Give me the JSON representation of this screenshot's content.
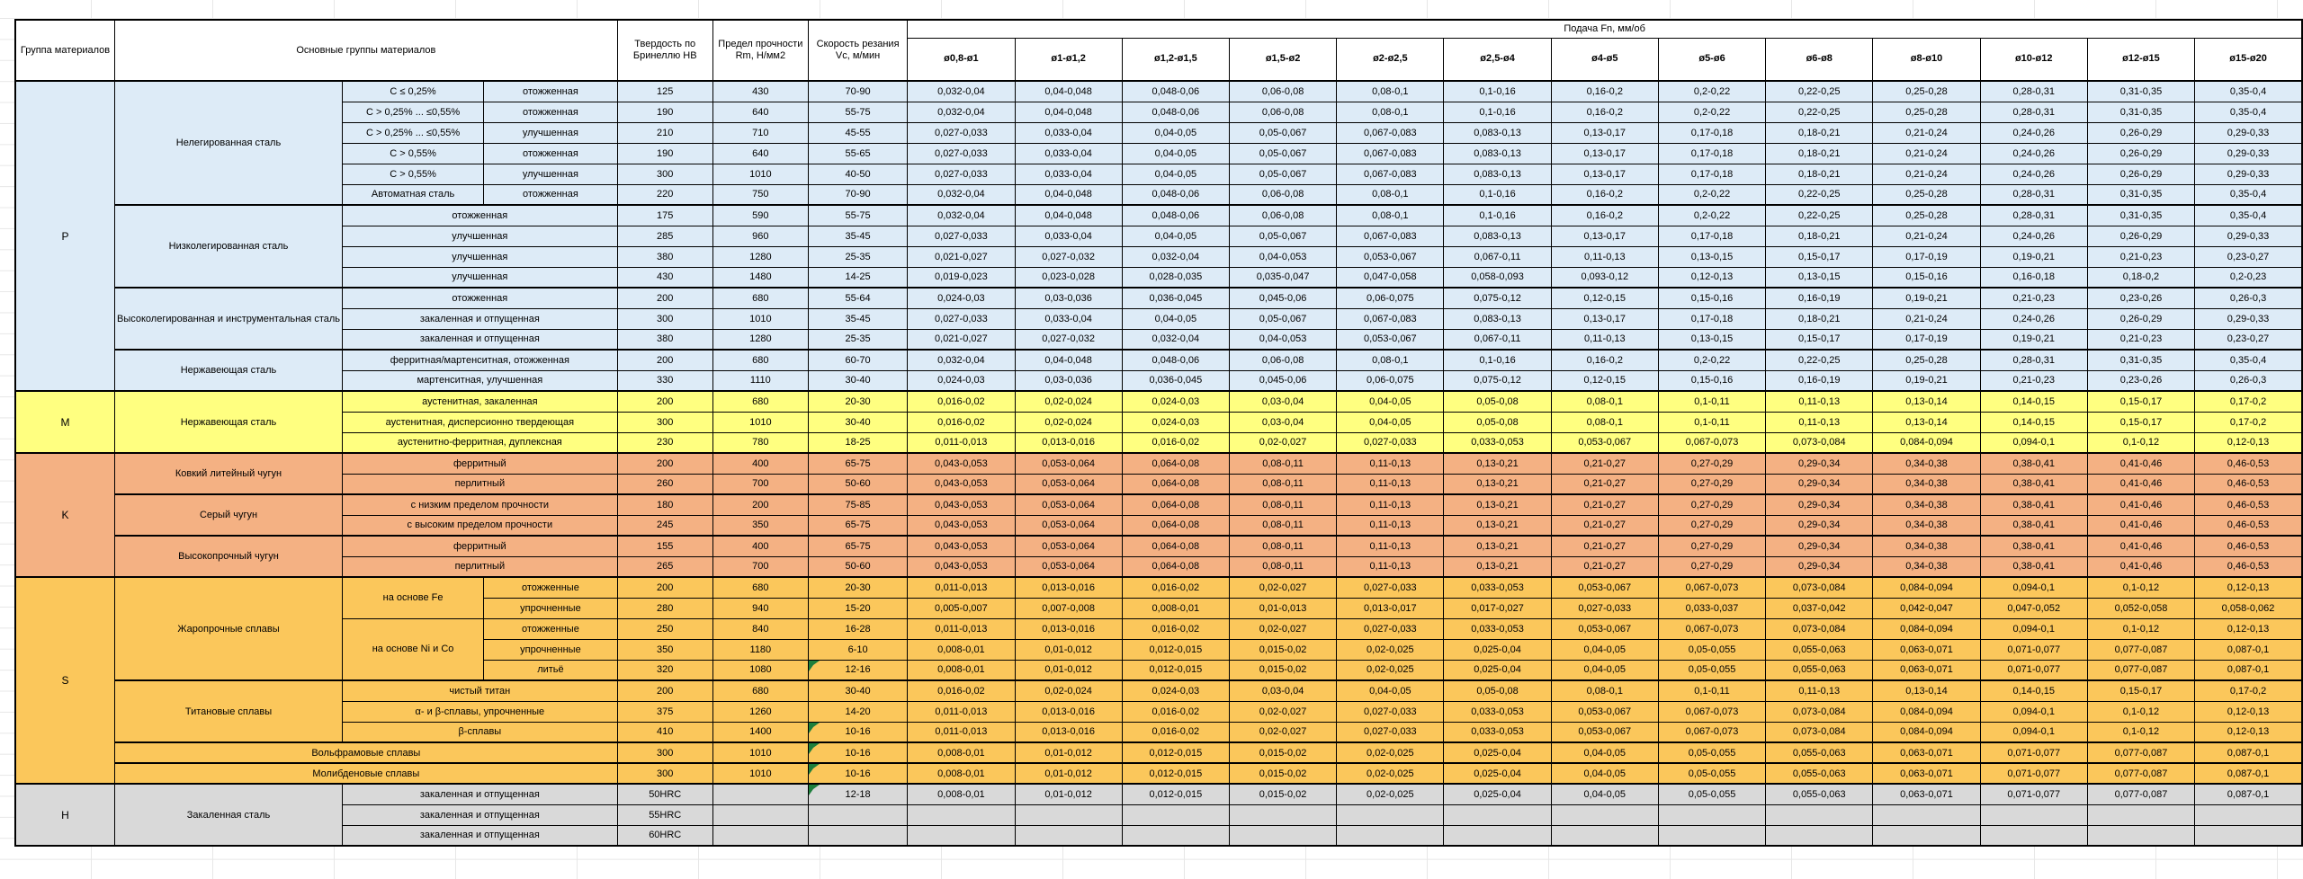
{
  "table": {
    "headers": {
      "group": "Группа материалов",
      "main_groups": "Основные группы материалов",
      "hardness": "Твердость по Бринеллю НВ",
      "strength": "Предел прочности Rm, Н/мм2",
      "speed": "Скорость резания Vc, м/мин",
      "feed": "Подача Fn, мм/об"
    },
    "diameter_columns": [
      "ø0,8-ø1",
      "ø1-ø1,2",
      "ø1,2-ø1,5",
      "ø1,5-ø2",
      "ø2-ø2,5",
      "ø2,5-ø4",
      "ø4-ø5",
      "ø5-ø6",
      "ø6-ø8",
      "ø8-ø10",
      "ø10-ø12",
      "ø12-ø15",
      "ø15-ø20"
    ],
    "group_colors": {
      "P": "#DDEBF7",
      "M": "#FFFF80",
      "K": "#F4B183",
      "S": "#FBC75B",
      "H": "#D9D9D9"
    },
    "feed_families": {
      "F1": [
        "0,032-0,04",
        "0,04-0,048",
        "0,048-0,06",
        "0,06-0,08",
        "0,08-0,1",
        "0,1-0,16",
        "0,16-0,2",
        "0,2-0,22",
        "0,22-0,25",
        "0,25-0,28",
        "0,28-0,31",
        "0,31-0,35",
        "0,35-0,4"
      ],
      "F2": [
        "0,027-0,033",
        "0,033-0,04",
        "0,04-0,05",
        "0,05-0,067",
        "0,067-0,083",
        "0,083-0,13",
        "0,13-0,17",
        "0,17-0,18",
        "0,18-0,21",
        "0,21-0,24",
        "0,24-0,26",
        "0,26-0,29",
        "0,29-0,33"
      ],
      "F3": [
        "0,021-0,027",
        "0,027-0,032",
        "0,032-0,04",
        "0,04-0,053",
        "0,053-0,067",
        "0,067-0,11",
        "0,11-0,13",
        "0,13-0,15",
        "0,15-0,17",
        "0,17-0,19",
        "0,19-0,21",
        "0,21-0,23",
        "0,23-0,27"
      ],
      "F4": [
        "0,019-0,023",
        "0,023-0,028",
        "0,028-0,035",
        "0,035-0,047",
        "0,047-0,058",
        "0,058-0,093",
        "0,093-0,12",
        "0,12-0,13",
        "0,13-0,15",
        "0,15-0,16",
        "0,16-0,18",
        "0,18-0,2",
        "0,2-0,23"
      ],
      "F5": [
        "0,024-0,03",
        "0,03-0,036",
        "0,036-0,045",
        "0,045-0,06",
        "0,06-0,075",
        "0,075-0,12",
        "0,12-0,15",
        "0,15-0,16",
        "0,16-0,19",
        "0,19-0,21",
        "0,21-0,23",
        "0,23-0,26",
        "0,26-0,3"
      ],
      "F6": [
        "0,016-0,02",
        "0,02-0,024",
        "0,024-0,03",
        "0,03-0,04",
        "0,04-0,05",
        "0,05-0,08",
        "0,08-0,1",
        "0,1-0,11",
        "0,11-0,13",
        "0,13-0,14",
        "0,14-0,15",
        "0,15-0,17",
        "0,17-0,2"
      ],
      "F7": [
        "0,011-0,013",
        "0,013-0,016",
        "0,016-0,02",
        "0,02-0,027",
        "0,027-0,033",
        "0,033-0,053",
        "0,053-0,067",
        "0,067-0,073",
        "0,073-0,084",
        "0,084-0,094",
        "0,094-0,1",
        "0,1-0,12",
        "0,12-0,13"
      ],
      "F8": [
        "0,043-0,053",
        "0,053-0,064",
        "0,064-0,08",
        "0,08-0,11",
        "0,11-0,13",
        "0,13-0,21",
        "0,21-0,27",
        "0,27-0,29",
        "0,29-0,34",
        "0,34-0,38",
        "0,38-0,41",
        "0,41-0,46",
        "0,46-0,53"
      ],
      "F9": [
        "0,005-0,007",
        "0,007-0,008",
        "0,008-0,01",
        "0,01-0,013",
        "0,013-0,017",
        "0,017-0,027",
        "0,027-0,033",
        "0,033-0,037",
        "0,037-0,042",
        "0,042-0,047",
        "0,047-0,052",
        "0,052-0,058",
        "0,058-0,062"
      ],
      "F10": [
        "0,008-0,01",
        "0,01-0,012",
        "0,012-0,015",
        "0,015-0,02",
        "0,02-0,025",
        "0,025-0,04",
        "0,04-0,05",
        "0,05-0,055",
        "0,055-0,063",
        "0,063-0,071",
        "0,071-0,077",
        "0,077-0,087",
        "0,087-0,1"
      ],
      "F11": [
        "",
        "",
        "",
        "",
        "",
        "",
        "",
        "",
        "",
        "",
        "",
        "",
        ""
      ]
    },
    "rows": [
      {
        "g": "P",
        "sep": true,
        "cells": [
          {
            "t": "P",
            "r": 15,
            "letter": true
          },
          {
            "t": "Нелегированная сталь",
            "r": 6
          },
          {
            "t": "С ≤ 0,25%"
          },
          {
            "t": "отожженная"
          }
        ],
        "hb": "125",
        "rm": "430",
        "vc": "70-90",
        "feeds": "F1"
      },
      {
        "g": "P",
        "cells": [
          {
            "t": "С > 0,25% ... ≤0,55%"
          },
          {
            "t": "отожженная"
          }
        ],
        "hb": "190",
        "rm": "640",
        "vc": "55-75",
        "feeds": "F1"
      },
      {
        "g": "P",
        "cells": [
          {
            "t": "С > 0,25% ... ≤0,55%"
          },
          {
            "t": "улучшенная"
          }
        ],
        "hb": "210",
        "rm": "710",
        "vc": "45-55",
        "feeds": "F2"
      },
      {
        "g": "P",
        "cells": [
          {
            "t": "С > 0,55%"
          },
          {
            "t": "отожженная"
          }
        ],
        "hb": "190",
        "rm": "640",
        "vc": "55-65",
        "feeds": "F2"
      },
      {
        "g": "P",
        "cells": [
          {
            "t": "С > 0,55%"
          },
          {
            "t": "улучшенная"
          }
        ],
        "hb": "300",
        "rm": "1010",
        "vc": "40-50",
        "feeds": "F2"
      },
      {
        "g": "P",
        "cells": [
          {
            "t": "Автоматная сталь"
          },
          {
            "t": "отожженная"
          }
        ],
        "hb": "220",
        "rm": "750",
        "vc": "70-90",
        "feeds": "F1"
      },
      {
        "g": "P",
        "sep": true,
        "cells": [
          {
            "t": "Низколегированная сталь",
            "r": 4
          },
          {
            "t": "отожженная",
            "c": 2
          }
        ],
        "hb": "175",
        "rm": "590",
        "vc": "55-75",
        "feeds": "F1"
      },
      {
        "g": "P",
        "cells": [
          {
            "t": "улучшенная",
            "c": 2
          }
        ],
        "hb": "285",
        "rm": "960",
        "vc": "35-45",
        "feeds": "F2"
      },
      {
        "g": "P",
        "cells": [
          {
            "t": "улучшенная",
            "c": 2
          }
        ],
        "hb": "380",
        "rm": "1280",
        "vc": "25-35",
        "feeds": "F3"
      },
      {
        "g": "P",
        "cells": [
          {
            "t": "улучшенная",
            "c": 2
          }
        ],
        "hb": "430",
        "rm": "1480",
        "vc": "14-25",
        "feeds": "F4"
      },
      {
        "g": "P",
        "sep": true,
        "cells": [
          {
            "t": "Высоколегированная и инструментальная сталь",
            "r": 3
          },
          {
            "t": "отожженная",
            "c": 2
          }
        ],
        "hb": "200",
        "rm": "680",
        "vc": "55-64",
        "feeds": "F5"
      },
      {
        "g": "P",
        "cells": [
          {
            "t": "закаленная и отпущенная",
            "c": 2
          }
        ],
        "hb": "300",
        "rm": "1010",
        "vc": "35-45",
        "feeds": "F2"
      },
      {
        "g": "P",
        "cells": [
          {
            "t": "закаленная и отпущенная",
            "c": 2
          }
        ],
        "hb": "380",
        "rm": "1280",
        "vc": "25-35",
        "feeds": "F3"
      },
      {
        "g": "P",
        "sep": true,
        "cells": [
          {
            "t": "Нержавеющая сталь",
            "r": 2
          },
          {
            "t": "ферритная/мартенситная, отожженная",
            "c": 2
          }
        ],
        "hb": "200",
        "rm": "680",
        "vc": "60-70",
        "feeds": "F1"
      },
      {
        "g": "P",
        "cells": [
          {
            "t": "мартенситная, улучшенная",
            "c": 2
          }
        ],
        "hb": "330",
        "rm": "1110",
        "vc": "30-40",
        "feeds": "F5"
      },
      {
        "g": "M",
        "sep": true,
        "cells": [
          {
            "t": "M",
            "r": 3,
            "letter": true
          },
          {
            "t": "Нержавеющая сталь",
            "r": 3
          },
          {
            "t": "аустенитная, закаленная",
            "c": 2
          }
        ],
        "hb": "200",
        "rm": "680",
        "vc": "20-30",
        "feeds": "F6"
      },
      {
        "g": "M",
        "cells": [
          {
            "t": "аустенитная, дисперсионно твердеющая",
            "c": 2
          }
        ],
        "hb": "300",
        "rm": "1010",
        "vc": "30-40",
        "feeds": "F6"
      },
      {
        "g": "M",
        "cells": [
          {
            "t": "аустенитно-ферритная, дуплексная",
            "c": 2
          }
        ],
        "hb": "230",
        "rm": "780",
        "vc": "18-25",
        "feeds": "F7"
      },
      {
        "g": "K",
        "sep": true,
        "cells": [
          {
            "t": "K",
            "r": 6,
            "letter": true
          },
          {
            "t": "Ковкий литейный чугун",
            "r": 2
          },
          {
            "t": "ферритный",
            "c": 2
          }
        ],
        "hb": "200",
        "rm": "400",
        "vc": "65-75",
        "feeds": "F8"
      },
      {
        "g": "K",
        "cells": [
          {
            "t": "перлитный",
            "c": 2
          }
        ],
        "hb": "260",
        "rm": "700",
        "vc": "50-60",
        "feeds": "F8"
      },
      {
        "g": "K",
        "sep": true,
        "cells": [
          {
            "t": "Серый чугун",
            "r": 2
          },
          {
            "t": "с низким пределом прочности",
            "c": 2
          }
        ],
        "hb": "180",
        "rm": "200",
        "vc": "75-85",
        "feeds": "F8"
      },
      {
        "g": "K",
        "cells": [
          {
            "t": "с высоким пределом прочности",
            "c": 2
          }
        ],
        "hb": "245",
        "rm": "350",
        "vc": "65-75",
        "feeds": "F8"
      },
      {
        "g": "K",
        "sep": true,
        "cells": [
          {
            "t": "Высокопрочный чугун",
            "r": 2
          },
          {
            "t": "ферритный",
            "c": 2
          }
        ],
        "hb": "155",
        "rm": "400",
        "vc": "65-75",
        "feeds": "F8"
      },
      {
        "g": "K",
        "cells": [
          {
            "t": "перлитный",
            "c": 2
          }
        ],
        "hb": "265",
        "rm": "700",
        "vc": "50-60",
        "feeds": "F8"
      },
      {
        "g": "S",
        "sep": true,
        "cells": [
          {
            "t": "S",
            "r": 10,
            "letter": true
          },
          {
            "t": "Жаропрочные сплавы",
            "r": 5
          },
          {
            "t": "на основе Fe",
            "r": 2
          },
          {
            "t": "отожженные"
          }
        ],
        "hb": "200",
        "rm": "680",
        "vc": "20-30",
        "feeds": "F7"
      },
      {
        "g": "S",
        "cells": [
          {
            "t": "упрочненные"
          }
        ],
        "hb": "280",
        "rm": "940",
        "vc": "15-20",
        "feeds": "F9"
      },
      {
        "g": "S",
        "cells": [
          {
            "t": "на основе Ni и Co",
            "r": 3
          },
          {
            "t": "отожженные"
          }
        ],
        "hb": "250",
        "rm": "840",
        "vc": "16-28",
        "feeds": "F7"
      },
      {
        "g": "S",
        "cells": [
          {
            "t": "упрочненные"
          }
        ],
        "hb": "350",
        "rm": "1180",
        "vc": "6-10",
        "feeds": "F10"
      },
      {
        "g": "S",
        "cells": [
          {
            "t": "литьё"
          }
        ],
        "hb": "320",
        "rm": "1080",
        "vc": "12-16",
        "vc_flag": true,
        "feeds": "F10"
      },
      {
        "g": "S",
        "sep": true,
        "cells": [
          {
            "t": "Титановые сплавы",
            "r": 3
          },
          {
            "t": "чистый титан",
            "c": 2
          }
        ],
        "hb": "200",
        "rm": "680",
        "vc": "30-40",
        "feeds": "F6"
      },
      {
        "g": "S",
        "cells": [
          {
            "t": "α- и β-сплавы, упрочненные",
            "c": 2
          }
        ],
        "hb": "375",
        "rm": "1260",
        "vc": "14-20",
        "feeds": "F7"
      },
      {
        "g": "S",
        "cells": [
          {
            "t": "β-сплавы",
            "c": 2
          }
        ],
        "hb": "410",
        "rm": "1400",
        "vc": "10-16",
        "vc_flag": true,
        "feeds": "F7"
      },
      {
        "g": "S",
        "sep": true,
        "cells": [
          {
            "t": "Вольфрамовые сплавы",
            "c": 3
          }
        ],
        "hb": "300",
        "rm": "1010",
        "vc": "10-16",
        "vc_flag": true,
        "feeds": "F10"
      },
      {
        "g": "S",
        "sep": true,
        "cells": [
          {
            "t": "Молибденовые сплавы",
            "c": 3
          }
        ],
        "hb": "300",
        "rm": "1010",
        "vc": "10-16",
        "vc_flag": true,
        "feeds": "F10"
      },
      {
        "g": "H",
        "sep": true,
        "cells": [
          {
            "t": "H",
            "r": 3,
            "letter": true
          },
          {
            "t": "Закаленная сталь",
            "r": 3
          },
          {
            "t": "закаленная и отпущенная",
            "c": 2
          }
        ],
        "hb": "50HRC",
        "rm": "",
        "vc": "12-18",
        "vc_flag": true,
        "feeds": "F10"
      },
      {
        "g": "H",
        "cells": [
          {
            "t": "закаленная и отпущенная",
            "c": 2
          }
        ],
        "hb": "55HRC",
        "rm": "",
        "vc": "",
        "feeds": "F11"
      },
      {
        "g": "H",
        "cells": [
          {
            "t": "закаленная и отпущенная",
            "c": 2
          }
        ],
        "hb": "60HRC",
        "rm": "",
        "vc": "",
        "feeds": "F11"
      }
    ]
  }
}
